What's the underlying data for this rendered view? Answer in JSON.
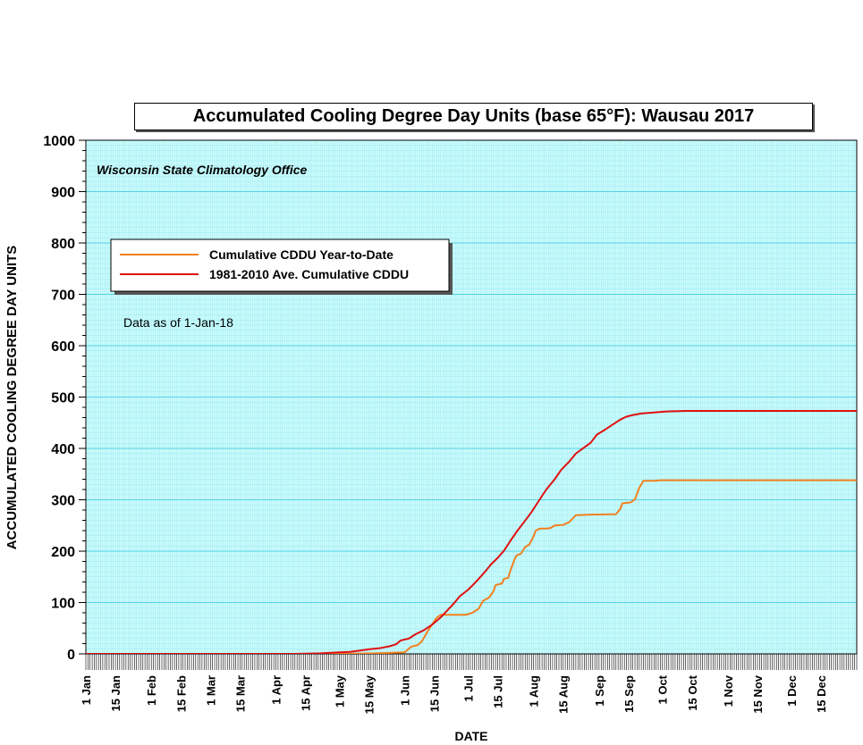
{
  "chart_data": {
    "type": "line",
    "title": "Accumulated Cooling Degree Day Units (base 65°F): Wausau 2017",
    "subtitle": "Wisconsin State Climatology Office",
    "annotation": "Data as of 1-Jan-18",
    "xlabel": "DATE",
    "ylabel": "ACCUMULATED COOLING DEGREE DAY UNITS",
    "x_unit": "day of year",
    "xlim": [
      1,
      366
    ],
    "ylim": [
      0,
      1000
    ],
    "grid": true,
    "legend_position": "upper-left",
    "colors": {
      "plot_background": "#ccfcfc",
      "major_grid": "#55d2e4",
      "minor_grid": "#9ee9f2",
      "year_to_date": "#f08020",
      "average": "#e01010"
    },
    "y_ticks": [
      "0",
      "100",
      "200",
      "300",
      "400",
      "500",
      "600",
      "700",
      "800",
      "900",
      "1000"
    ],
    "x_ticks": [
      {
        "label": "1 Jan",
        "day": 1
      },
      {
        "label": "15 Jan",
        "day": 15
      },
      {
        "label": "1 Feb",
        "day": 32
      },
      {
        "label": "15 Feb",
        "day": 46
      },
      {
        "label": "1 Mar",
        "day": 60
      },
      {
        "label": "15 Mar",
        "day": 74
      },
      {
        "label": "1 Apr",
        "day": 91
      },
      {
        "label": "15 Apr",
        "day": 105
      },
      {
        "label": "1 May",
        "day": 121
      },
      {
        "label": "15 May",
        "day": 135
      },
      {
        "label": "1 Jun",
        "day": 152
      },
      {
        "label": "15 Jun",
        "day": 166
      },
      {
        "label": "1 Jul",
        "day": 182
      },
      {
        "label": "15 Jul",
        "day": 196
      },
      {
        "label": "1 Aug",
        "day": 213
      },
      {
        "label": "15 Aug",
        "day": 227
      },
      {
        "label": "1 Sep",
        "day": 244
      },
      {
        "label": "15 Sep",
        "day": 258
      },
      {
        "label": "1 Oct",
        "day": 274
      },
      {
        "label": "15 Oct",
        "day": 288
      },
      {
        "label": "1 Nov",
        "day": 305
      },
      {
        "label": "15 Nov",
        "day": 319
      },
      {
        "label": "1 Dec",
        "day": 335
      },
      {
        "label": "15 Dec",
        "day": 349
      }
    ],
    "series": [
      {
        "name": "Cumulative CDDU Year-to-Date",
        "color": "#f08020",
        "points": [
          [
            1,
            0
          ],
          [
            120,
            0
          ],
          [
            138,
            1
          ],
          [
            152,
            3
          ],
          [
            155,
            14
          ],
          [
            158,
            17
          ],
          [
            160,
            24
          ],
          [
            163,
            45
          ],
          [
            167,
            70
          ],
          [
            169,
            76
          ],
          [
            175,
            76
          ],
          [
            181,
            76
          ],
          [
            184,
            80
          ],
          [
            187,
            88
          ],
          [
            189,
            103
          ],
          [
            192,
            110
          ],
          [
            194,
            122
          ],
          [
            195,
            134
          ],
          [
            198,
            137
          ],
          [
            199,
            146
          ],
          [
            201,
            148
          ],
          [
            202,
            162
          ],
          [
            204,
            184
          ],
          [
            205,
            192
          ],
          [
            207,
            195
          ],
          [
            209,
            208
          ],
          [
            211,
            213
          ],
          [
            213,
            229
          ],
          [
            214,
            240
          ],
          [
            216,
            244
          ],
          [
            219,
            244
          ],
          [
            221,
            245
          ],
          [
            223,
            250
          ],
          [
            227,
            251
          ],
          [
            230,
            257
          ],
          [
            233,
            270
          ],
          [
            240,
            271
          ],
          [
            252,
            272
          ],
          [
            254,
            282
          ],
          [
            255,
            293
          ],
          [
            259,
            295
          ],
          [
            261,
            301
          ],
          [
            263,
            323
          ],
          [
            265,
            337
          ],
          [
            270,
            337
          ],
          [
            273,
            338
          ],
          [
            366,
            338
          ]
        ]
      },
      {
        "name": "1981-2010 Ave. Cumulative CDDU",
        "color": "#e01010",
        "points": [
          [
            1,
            0
          ],
          [
            100,
            0
          ],
          [
            112,
            1
          ],
          [
            121,
            3
          ],
          [
            126,
            4
          ],
          [
            130,
            6
          ],
          [
            135,
            9
          ],
          [
            140,
            11
          ],
          [
            145,
            15
          ],
          [
            148,
            19
          ],
          [
            150,
            26
          ],
          [
            154,
            30
          ],
          [
            157,
            38
          ],
          [
            161,
            46
          ],
          [
            165,
            57
          ],
          [
            169,
            71
          ],
          [
            172,
            84
          ],
          [
            175,
            97
          ],
          [
            178,
            112
          ],
          [
            182,
            125
          ],
          [
            184,
            133
          ],
          [
            187,
            146
          ],
          [
            190,
            160
          ],
          [
            193,
            175
          ],
          [
            196,
            187
          ],
          [
            199,
            201
          ],
          [
            202,
            220
          ],
          [
            205,
            238
          ],
          [
            208,
            254
          ],
          [
            212,
            276
          ],
          [
            215,
            295
          ],
          [
            219,
            320
          ],
          [
            223,
            340
          ],
          [
            226,
            358
          ],
          [
            230,
            375
          ],
          [
            233,
            390
          ],
          [
            236,
            399
          ],
          [
            240,
            411
          ],
          [
            243,
            427
          ],
          [
            247,
            437
          ],
          [
            251,
            448
          ],
          [
            254,
            456
          ],
          [
            257,
            462
          ],
          [
            260,
            465
          ],
          [
            264,
            468
          ],
          [
            270,
            470
          ],
          [
            276,
            472
          ],
          [
            285,
            473
          ],
          [
            366,
            473
          ]
        ]
      }
    ]
  }
}
